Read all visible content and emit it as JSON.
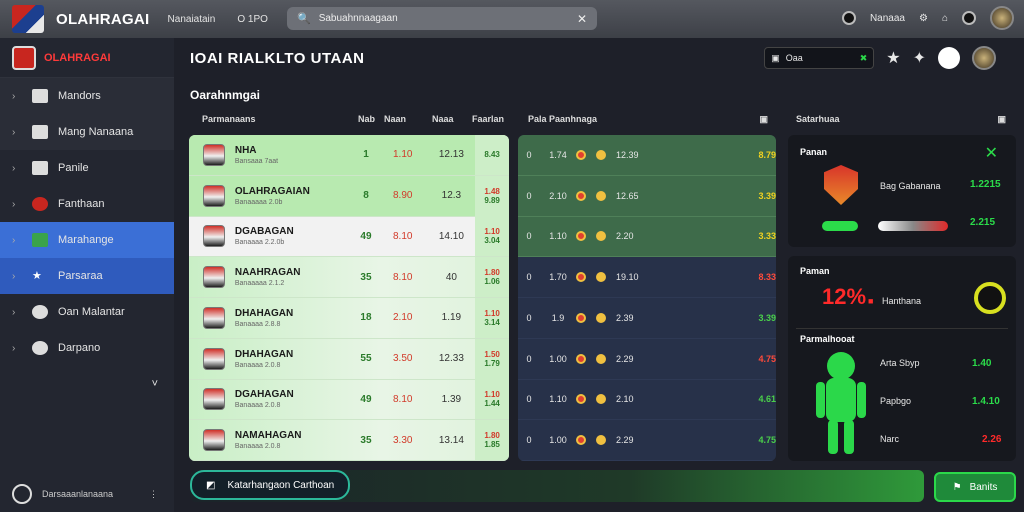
{
  "topbar": {
    "brand": "OLAHRAGAI",
    "nav1": "Nanaiatain",
    "nav2": "O 1PO",
    "search_placeholder": "Sabuahnnaagaan",
    "right_label": "Nanaaa"
  },
  "sidebar": {
    "header": "OLAHRAGAI",
    "items": [
      {
        "label": "Mandors"
      },
      {
        "label": "Mang Nanaana"
      },
      {
        "label": "Panile"
      },
      {
        "label": "Fanthaan"
      },
      {
        "label": "Marahange"
      },
      {
        "label": "Parsaraa"
      },
      {
        "label": "Oan Malantar"
      },
      {
        "label": "Darpano"
      }
    ],
    "footer": "Darsaaanlanaana"
  },
  "main": {
    "title": "IOAI RIALKLTO UTAAN",
    "search_text": "Oaa",
    "subtitle": "Oarahnmgai",
    "table1_headers": [
      "Parmanaans",
      "Nab",
      "Naan",
      "Naaa",
      "Faarlan"
    ],
    "table2_header": "Pala Paanhnaga",
    "panel_header": "Satarhuaa",
    "teams": [
      {
        "name": "NHA",
        "sub": "Bansaaa 7aat",
        "c1": "1",
        "c2": "1.10",
        "c3": "12.13",
        "c4a": "",
        "c4b": "8.43"
      },
      {
        "name": "OLAHRAGAIAN",
        "sub": "Banaaaaa 2.0b",
        "c1": "8",
        "c2": "8.90",
        "c3": "12.3",
        "c4a": "1.48",
        "c4b": "9.89"
      },
      {
        "name": "DGABAGAN",
        "sub": "Banaaaa 2.2.0b",
        "c1": "49",
        "c2": "8.10",
        "c3": "14.10",
        "c4a": "1.10",
        "c4b": "3.04"
      },
      {
        "name": "NAAHRAGAN",
        "sub": "Banaaaaa 2.1.2",
        "c1": "35",
        "c2": "8.10",
        "c3": "40",
        "c4a": "1.80",
        "c4b": "1.06"
      },
      {
        "name": "DHAHAGAN",
        "sub": "Banaaaa 2.8.8",
        "c1": "18",
        "c2": "2.10",
        "c3": "1.19",
        "c4a": "1.10",
        "c4b": "3.14"
      },
      {
        "name": "DHAHAGAN",
        "sub": "Banaaaa 2.0.8",
        "c1": "55",
        "c2": "3.50",
        "c3": "12.33",
        "c4a": "1.50",
        "c4b": "1.79"
      },
      {
        "name": "DGAHAGAN",
        "sub": "Banaaaa 2.0.8",
        "c1": "49",
        "c2": "8.10",
        "c3": "1.39",
        "c4a": "1.10",
        "c4b": "1.44"
      },
      {
        "name": "NAMAHAGAN",
        "sub": "Banaaaa 2.0.8",
        "c1": "35",
        "c2": "3.30",
        "c3": "13.14",
        "c4a": "1.80",
        "c4b": "1.85"
      }
    ],
    "matches": [
      {
        "a": "0",
        "b": "1.74",
        "d": "12.39",
        "e": "8.79"
      },
      {
        "a": "0",
        "b": "2.10",
        "d": "12.65",
        "e": "3.39"
      },
      {
        "a": "0",
        "b": "1.10",
        "d": "2.20",
        "e": "3.33"
      },
      {
        "a": "0",
        "b": "1.70",
        "d": "19.10",
        "e": "8.33"
      },
      {
        "a": "0",
        "b": "1.9",
        "d": "2.39",
        "e": "3.39"
      },
      {
        "a": "0",
        "b": "1.00",
        "d": "2.29",
        "e": "4.75"
      },
      {
        "a": "0",
        "b": "1.10",
        "d": "2.10",
        "e": "4.61"
      },
      {
        "a": "0",
        "b": "1.00",
        "d": "2.29",
        "e": "4.75"
      }
    ],
    "panel1": {
      "title": "Panan",
      "label": "Bag Gabanana",
      "val1": "1.2215",
      "val2": "2.215"
    },
    "panel2": {
      "title": "Paman",
      "pct": "12%",
      "pct_label": "Hanthana",
      "sub": "Parmalhooat",
      "stats": [
        {
          "label": "Arta Sbyp",
          "value": "1.40"
        },
        {
          "label": "Papbgo",
          "value": "1.4.10"
        },
        {
          "label": "Narc",
          "value": "2.26"
        }
      ]
    },
    "footer_button": "Katarhangaon Carthoan",
    "action_button": "Banits"
  },
  "colors": {
    "accent": "#3b6fd6",
    "good": "#2bdc4a",
    "bad": "#ff2a2a"
  }
}
